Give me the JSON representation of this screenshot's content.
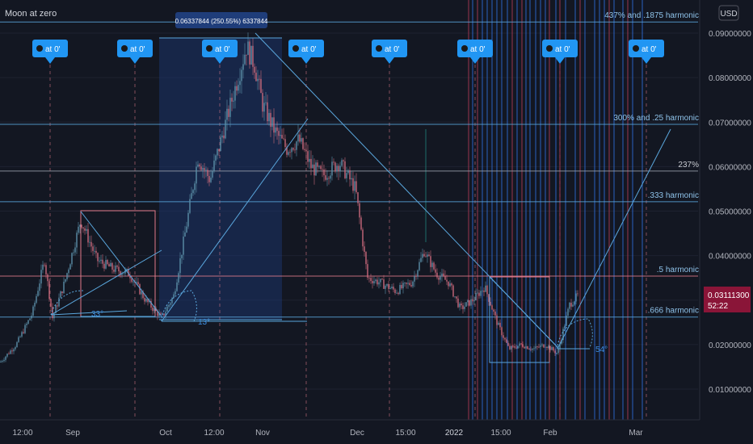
{
  "title": "Moon at zero",
  "currency": "USD",
  "colors": {
    "background": "#131722",
    "grid": "#1e2230",
    "up": "#5b8fa8",
    "down": "#c8687a",
    "blue_line": "#2f6fdc",
    "red_line": "#b03a55",
    "light_blue": "#5aa6dc",
    "pink": "#e07a8a",
    "price_tag": "#8a1538"
  },
  "price_tag": {
    "value": "0.03111300",
    "countdown": "52:22"
  },
  "measure_label": "0.06337844 (250.55%) 6337844",
  "moon_label": "at 0'",
  "angle_labels": [
    "33°",
    "13°",
    "54°"
  ],
  "harmonic_lines": [
    {
      "label": "437% and .1875 harmonic",
      "price": 0.0925
    },
    {
      "label": "300% and .25 harmonic",
      "price": 0.0695
    },
    {
      "label": "237%",
      "price": 0.059
    },
    {
      "label": ".333 harmonic",
      "price": 0.0521
    },
    {
      "label": ".5 harmonic",
      "price": 0.0354
    },
    {
      "label": ".666 harmonic",
      "price": 0.0262
    }
  ],
  "chart_data": {
    "type": "line",
    "title": "Moon at zero",
    "y_axis": {
      "ticks": [
        "0.09000000",
        "0.08000000",
        "0.07000000",
        "0.06000000",
        "0.05000000",
        "0.04000000",
        "0.02000000",
        "0.01000000"
      ],
      "ylim": [
        0.0,
        0.097
      ]
    },
    "x_axis": {
      "ticks": [
        "12:00",
        "Sep",
        "Oct",
        "12:00",
        "Nov",
        "Dec",
        "15:00",
        "2022",
        "15:00",
        "Feb",
        "Mar"
      ]
    },
    "series": [
      {
        "x": [
          0,
          20,
          40,
          55,
          65,
          80,
          100,
          120,
          140,
          160,
          180,
          200,
          215,
          230,
          245,
          260,
          275,
          290,
          305,
          315,
          325,
          340,
          355,
          370,
          385,
          400,
          420,
          440,
          455,
          470,
          490,
          510,
          525,
          540,
          555,
          570,
          585,
          600,
          615,
          630,
          645,
          660,
          675,
          690,
          705,
          715
        ],
        "values": [
          0.016,
          0.02,
          0.027,
          0.039,
          0.026,
          0.034,
          0.048,
          0.039,
          0.037,
          0.036,
          0.03,
          0.026,
          0.031,
          0.046,
          0.062,
          0.057,
          0.067,
          0.077,
          0.087,
          0.083,
          0.074,
          0.068,
          0.064,
          0.066,
          0.06,
          0.058,
          0.061,
          0.055,
          0.035,
          0.034,
          0.032,
          0.034,
          0.041,
          0.036,
          0.034,
          0.028,
          0.03,
          0.033,
          0.025,
          0.019,
          0.02,
          0.019,
          0.02,
          0.018,
          0.029,
          0.031
        ]
      }
    ]
  }
}
